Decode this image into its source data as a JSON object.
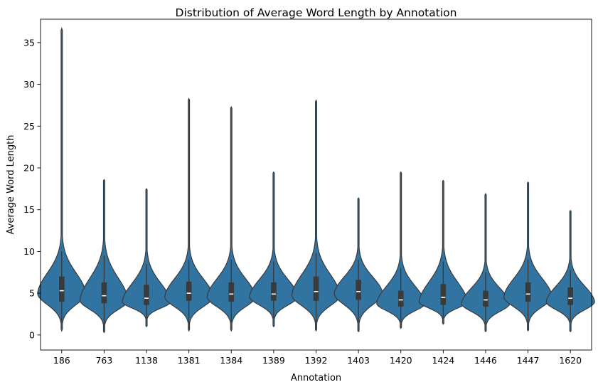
{
  "chart_data": {
    "type": "violin",
    "title": "Distribution of Average Word Length by Annotation",
    "xlabel": "Annotation",
    "ylabel": "Average Word Length",
    "ylim": [
      -1.8,
      37.8
    ],
    "yticks": [
      0,
      5,
      10,
      15,
      20,
      25,
      30,
      35
    ],
    "grid": false,
    "color": "#3274a1",
    "categories": [
      "186",
      "763",
      "1138",
      "1381",
      "1384",
      "1389",
      "1392",
      "1403",
      "1420",
      "1424",
      "1446",
      "1447",
      "1620"
    ],
    "series": [
      {
        "category": "186",
        "min": 0.5,
        "q1": 4.0,
        "median": 5.3,
        "q3": 7.0,
        "max": 36.7,
        "whisker_low": 1.5,
        "whisker_high": 10.0,
        "mode": 5.0
      },
      {
        "category": "763",
        "min": 0.3,
        "q1": 3.8,
        "median": 4.7,
        "q3": 6.3,
        "max": 18.6,
        "whisker_low": 1.3,
        "whisker_high": 9.5,
        "mode": 4.2
      },
      {
        "category": "1138",
        "min": 1.0,
        "q1": 3.6,
        "median": 4.4,
        "q3": 6.0,
        "max": 17.5,
        "whisker_low": 2.0,
        "whisker_high": 8.5,
        "mode": 4.0
      },
      {
        "category": "1381",
        "min": 0.5,
        "q1": 4.1,
        "median": 5.0,
        "q3": 6.4,
        "max": 28.3,
        "whisker_low": 1.5,
        "whisker_high": 9.0,
        "mode": 4.6
      },
      {
        "category": "1384",
        "min": 0.5,
        "q1": 4.0,
        "median": 4.9,
        "q3": 6.3,
        "max": 27.3,
        "whisker_low": 1.5,
        "whisker_high": 9.0,
        "mode": 4.6
      },
      {
        "category": "1389",
        "min": 1.0,
        "q1": 4.1,
        "median": 4.9,
        "q3": 6.3,
        "max": 19.5,
        "whisker_low": 2.0,
        "whisker_high": 8.8,
        "mode": 4.6
      },
      {
        "category": "1392",
        "min": 0.5,
        "q1": 4.1,
        "median": 5.2,
        "q3": 7.0,
        "max": 28.1,
        "whisker_low": 1.5,
        "whisker_high": 9.8,
        "mode": 4.8
      },
      {
        "category": "1403",
        "min": 0.4,
        "q1": 4.2,
        "median": 5.2,
        "q3": 6.6,
        "max": 16.4,
        "whisker_low": 1.5,
        "whisker_high": 9.0,
        "mode": 5.0
      },
      {
        "category": "1420",
        "min": 0.8,
        "q1": 3.4,
        "median": 4.2,
        "q3": 5.3,
        "max": 19.5,
        "whisker_low": 1.5,
        "whisker_high": 8.0,
        "mode": 3.8
      },
      {
        "category": "1424",
        "min": 1.3,
        "q1": 3.6,
        "median": 4.5,
        "q3": 6.1,
        "max": 18.5,
        "whisker_low": 2.0,
        "whisker_high": 8.8,
        "mode": 4.0
      },
      {
        "category": "1446",
        "min": 0.4,
        "q1": 3.4,
        "median": 4.2,
        "q3": 5.3,
        "max": 16.9,
        "whisker_low": 1.3,
        "whisker_high": 7.5,
        "mode": 3.8
      },
      {
        "category": "1447",
        "min": 0.5,
        "q1": 4.0,
        "median": 4.9,
        "q3": 6.3,
        "max": 18.3,
        "whisker_low": 1.5,
        "whisker_high": 9.0,
        "mode": 4.6
      },
      {
        "category": "1620",
        "min": 0.4,
        "q1": 3.6,
        "median": 4.4,
        "q3": 5.7,
        "max": 14.9,
        "whisker_low": 1.5,
        "whisker_high": 7.8,
        "mode": 4.0
      }
    ]
  }
}
